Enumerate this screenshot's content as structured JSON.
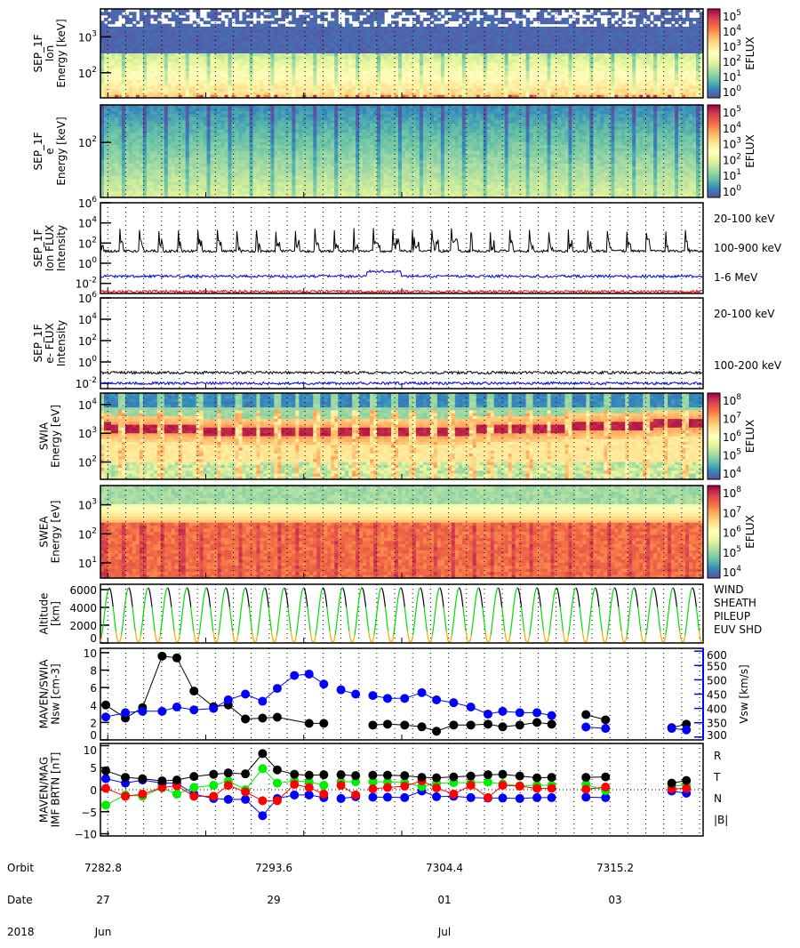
{
  "chart_data": [
    {
      "id": "sep-ion-spec",
      "type": "heatmap",
      "ylabel_lines": [
        "SEP_1F",
        "Ion",
        "Energy [keV]"
      ],
      "yscale": "log",
      "ylim": [
        20,
        6000
      ],
      "yticks": [
        {
          "v": 100,
          "label": "10",
          "exp": "2"
        },
        {
          "v": 1000,
          "label": "10",
          "exp": "3"
        }
      ],
      "colorbar": {
        "label": "EFLUX",
        "ticks": [
          {
            "label": "10",
            "exp": "0"
          },
          {
            "label": "10",
            "exp": "1"
          },
          {
            "label": "10",
            "exp": "2"
          },
          {
            "label": "10",
            "exp": "3"
          },
          {
            "label": "10",
            "exp": "4"
          },
          {
            "label": "10",
            "exp": "5"
          }
        ],
        "range": [
          0,
          5
        ]
      }
    },
    {
      "id": "sep-e-spec",
      "type": "heatmap",
      "ylabel_lines": [
        "SEP_1F",
        "e",
        "Energy [keV]"
      ],
      "yscale": "log",
      "ylim": [
        20,
        300
      ],
      "yticks": [
        {
          "v": 100,
          "label": "10",
          "exp": "2"
        }
      ],
      "colorbar": {
        "label": "EFLUX",
        "ticks": [
          {
            "label": "10",
            "exp": "0"
          },
          {
            "label": "10",
            "exp": "1"
          },
          {
            "label": "10",
            "exp": "2"
          },
          {
            "label": "10",
            "exp": "3"
          },
          {
            "label": "10",
            "exp": "4"
          },
          {
            "label": "10",
            "exp": "5"
          }
        ],
        "range": [
          0,
          5
        ]
      }
    },
    {
      "id": "sep-ion-flux",
      "type": "line",
      "ylabel_lines": [
        "SEP_1F",
        "Ion FLUX",
        "Intensity"
      ],
      "yscale": "log",
      "ylim_exp": [
        -3,
        6
      ],
      "yticks": [
        {
          "label": "10",
          "exp": "6"
        },
        {
          "label": "10",
          "exp": "4"
        },
        {
          "label": "10",
          "exp": "2"
        },
        {
          "label": "10",
          "exp": "0"
        },
        {
          "label": "10",
          "exp": "-2"
        }
      ],
      "yticks_exp": [
        6,
        4,
        2,
        0,
        -2
      ],
      "series": [
        {
          "name": "20-100 keV",
          "color": "#000000",
          "base_log": 1.2,
          "spike_log": 3.0
        },
        {
          "name": "100-900 keV",
          "color": "#0000dd",
          "base_log": -1.3,
          "spike_log": -0.8
        },
        {
          "name": "1-6 MeV",
          "color": "#ee0000",
          "base_log": -2.8,
          "spike_log": -2.5
        }
      ]
    },
    {
      "id": "sep-e-flux",
      "type": "line",
      "ylabel_lines": [
        "SEP_1F",
        "e- FLUX",
        "Intensity"
      ],
      "yscale": "log",
      "ylim_exp": [
        -2.5,
        6
      ],
      "yticks": [
        {
          "label": "10",
          "exp": "6"
        },
        {
          "label": "10",
          "exp": "4"
        },
        {
          "label": "10",
          "exp": "2"
        },
        {
          "label": "10",
          "exp": "0"
        },
        {
          "label": "10",
          "exp": "-2"
        }
      ],
      "yticks_exp": [
        6,
        4,
        2,
        0,
        -2
      ],
      "series": [
        {
          "name": "20-100 keV",
          "color": "#000000",
          "base_log": -1.0
        },
        {
          "name": "100-200 keV",
          "color": "#0000dd",
          "base_log": -2.0
        }
      ]
    },
    {
      "id": "swia-spec",
      "type": "heatmap",
      "ylabel_lines": [
        "SWIA",
        "Energy [eV]"
      ],
      "yscale": "log",
      "ylim": [
        25,
        25000
      ],
      "yticks": [
        {
          "v": 100,
          "label": "10",
          "exp": "2"
        },
        {
          "v": 1000,
          "label": "10",
          "exp": "3"
        },
        {
          "v": 10000,
          "label": "10",
          "exp": "4"
        }
      ],
      "colorbar": {
        "label": "EFLUX",
        "ticks": [
          {
            "label": "10",
            "exp": "4"
          },
          {
            "label": "10",
            "exp": "5"
          },
          {
            "label": "10",
            "exp": "6"
          },
          {
            "label": "10",
            "exp": "7"
          },
          {
            "label": "10",
            "exp": "8"
          }
        ],
        "range": [
          4,
          8
        ]
      }
    },
    {
      "id": "swea-spec",
      "type": "heatmap",
      "ylabel_lines": [
        "SWEA",
        "Energy [eV]"
      ],
      "yscale": "log",
      "ylim": [
        3,
        4600
      ],
      "yticks": [
        {
          "v": 10,
          "label": "10",
          "exp": "1"
        },
        {
          "v": 100,
          "label": "10",
          "exp": "2"
        },
        {
          "v": 1000,
          "label": "10",
          "exp": "3"
        }
      ],
      "colorbar": {
        "label": "EFLUX",
        "ticks": [
          {
            "label": "10",
            "exp": "4"
          },
          {
            "label": "10",
            "exp": "5"
          },
          {
            "label": "10",
            "exp": "6"
          },
          {
            "label": "10",
            "exp": "7"
          },
          {
            "label": "10",
            "exp": "8"
          }
        ],
        "range": [
          3.5,
          8.6
        ]
      }
    },
    {
      "id": "altitude",
      "type": "line",
      "ylabel_lines": [
        "Altitude",
        "[km]"
      ],
      "ylim": [
        0,
        6600
      ],
      "yticks": [
        0,
        2000,
        4000,
        6000
      ],
      "orbits": 31,
      "apoapsis_km": 6200,
      "legend": [
        {
          "name": "WIND",
          "color": "#000000"
        },
        {
          "name": "SHEATH",
          "color": "#00dd00"
        },
        {
          "name": "PILEUP",
          "color": "#ffa500"
        },
        {
          "name": "EUV SHD",
          "color": "#0000cc"
        }
      ]
    },
    {
      "id": "nsw-vsw",
      "type": "scatter",
      "ylabel_lines": [
        "MAVEN/SWIA",
        "Nsw [cm-3]"
      ],
      "ylim": [
        0,
        10.5
      ],
      "yticks": [
        0,
        2,
        4,
        6,
        8,
        10
      ],
      "y2label": "Vsw [km/s]",
      "y2lim": [
        290,
        610
      ],
      "y2ticks": [
        300,
        350,
        400,
        450,
        500,
        550,
        600
      ],
      "series": [
        {
          "name": "Nsw",
          "color": "#000000",
          "axis": "left",
          "points": [
            [
              0.0,
              4.0
            ],
            [
              0.4,
              2.5
            ],
            [
              0.75,
              3.7
            ],
            [
              1.15,
              9.6
            ],
            [
              1.45,
              9.4
            ],
            [
              1.8,
              5.6
            ],
            [
              2.2,
              3.8
            ],
            [
              2.5,
              4.0
            ],
            [
              2.85,
              2.4
            ],
            [
              3.2,
              2.5
            ],
            [
              3.5,
              2.6
            ],
            [
              4.15,
              1.9
            ],
            [
              4.45,
              1.9
            ],
            [
              null,
              null
            ],
            [
              5.45,
              1.7
            ],
            [
              5.75,
              1.8
            ],
            [
              6.1,
              1.7
            ],
            [
              6.45,
              1.5
            ],
            [
              6.75,
              1.0
            ],
            [
              7.1,
              1.7
            ],
            [
              7.45,
              1.7
            ],
            [
              7.8,
              1.8
            ],
            [
              8.1,
              1.5
            ],
            [
              8.45,
              1.7
            ],
            [
              8.8,
              2.0
            ],
            [
              9.1,
              1.8
            ],
            [
              null,
              null
            ],
            [
              9.8,
              2.9
            ],
            [
              10.2,
              2.3
            ],
            [
              null,
              null
            ],
            [
              11.55,
              1.4
            ],
            [
              11.85,
              1.8
            ]
          ]
        },
        {
          "name": "Vsw",
          "color": "#0000ff",
          "axis": "right",
          "points": [
            [
              0.0,
              370
            ],
            [
              0.4,
              385
            ],
            [
              0.75,
              390
            ],
            [
              1.15,
              390
            ],
            [
              1.45,
              405
            ],
            [
              1.8,
              395
            ],
            [
              2.2,
              400
            ],
            [
              2.5,
              430
            ],
            [
              2.85,
              450
            ],
            [
              3.2,
              425
            ],
            [
              3.5,
              470
            ],
            [
              3.85,
              515
            ],
            [
              4.15,
              520
            ],
            [
              4.45,
              485
            ],
            [
              null,
              null
            ],
            [
              4.8,
              465
            ],
            [
              5.1,
              450
            ],
            [
              null,
              null
            ],
            [
              5.45,
              445
            ],
            [
              5.75,
              435
            ],
            [
              6.1,
              435
            ],
            [
              6.45,
              455
            ],
            [
              6.75,
              430
            ],
            [
              7.1,
              420
            ],
            [
              7.45,
              405
            ],
            [
              7.8,
              380
            ],
            [
              8.1,
              390
            ],
            [
              8.45,
              385
            ],
            [
              8.8,
              385
            ],
            [
              9.1,
              375
            ],
            [
              null,
              null
            ],
            [
              9.8,
              335
            ],
            [
              10.2,
              330
            ],
            [
              null,
              null
            ],
            [
              11.55,
              330
            ],
            [
              11.85,
              325
            ]
          ]
        }
      ]
    },
    {
      "id": "imf",
      "type": "scatter",
      "ylabel_lines": [
        "MAVEN/MAG",
        "IMF BRTN [nT]"
      ],
      "ylim": [
        -10.5,
        10.5
      ],
      "yticks": [
        -10,
        -5,
        0,
        5,
        10
      ],
      "legend": [
        {
          "name": "R",
          "color": "#0000ee"
        },
        {
          "name": "T",
          "color": "#00dd00"
        },
        {
          "name": "N",
          "color": "#ee0000"
        },
        {
          "name": "|B|",
          "color": "#000000"
        }
      ],
      "x": [
        0.0,
        0.4,
        0.75,
        1.15,
        1.45,
        1.8,
        2.2,
        2.5,
        2.85,
        3.2,
        3.5,
        3.85,
        4.15,
        4.45,
        null,
        4.8,
        5.1,
        null,
        5.45,
        5.75,
        6.1,
        6.45,
        6.75,
        7.1,
        7.45,
        7.8,
        8.1,
        8.45,
        8.8,
        9.1,
        null,
        9.8,
        10.2,
        null,
        11.55,
        11.85
      ],
      "series": [
        {
          "name": "R",
          "color": "#0000ff",
          "values": [
            2.5,
            1.5,
            2.2,
            1.5,
            1.5,
            -1.0,
            -2.0,
            -2.2,
            -2.2,
            -5.9,
            -2.0,
            -1.2,
            -1.2,
            -1.8,
            null,
            -2.0,
            -1.6,
            null,
            -1.7,
            -1.7,
            -1.8,
            -0.3,
            -1.6,
            -1.5,
            -1.8,
            -1.9,
            -1.9,
            -2.0,
            -1.8,
            -1.8,
            null,
            -1.7,
            -1.8,
            null,
            -0.3,
            -0.8
          ]
        },
        {
          "name": "T",
          "color": "#00ee00",
          "values": [
            -3.5,
            -1.2,
            -1.5,
            0.4,
            -1.0,
            0.5,
            1.0,
            2.0,
            0.0,
            4.8,
            1.5,
            2.0,
            1.8,
            1.0,
            null,
            1.8,
            1.8,
            null,
            1.8,
            1.8,
            1.6,
            0.7,
            1.5,
            1.6,
            1.6,
            1.7,
            1.3,
            0.9,
            1.0,
            1.0,
            null,
            1.2,
            -0.2,
            null,
            0.8,
            1.0
          ]
        },
        {
          "name": "N",
          "color": "#ff0000",
          "values": [
            0.3,
            -1.5,
            -1.0,
            0.5,
            0.9,
            -1.5,
            -1.5,
            1.0,
            -0.5,
            -2.5,
            -2.5,
            1.2,
            0.5,
            -1.0,
            null,
            1.0,
            -1.2,
            null,
            0.2,
            0.5,
            0.8,
            2.0,
            0.4,
            -1.0,
            1.0,
            -1.8,
            1.0,
            0.8,
            0.3,
            0.3,
            null,
            0.1,
            0.6,
            null,
            0.2,
            0.3
          ]
        },
        {
          "name": "|B|",
          "color": "#000000",
          "values": [
            4.3,
            2.8,
            2.5,
            2.0,
            2.2,
            3.0,
            3.5,
            3.8,
            3.6,
            8.2,
            4.5,
            3.5,
            3.3,
            3.4,
            null,
            3.4,
            3.2,
            null,
            3.3,
            3.3,
            3.2,
            2.8,
            2.7,
            2.9,
            3.1,
            3.4,
            3.5,
            3.1,
            2.7,
            2.8,
            null,
            2.8,
            2.9,
            null,
            1.5,
            2.1
          ]
        }
      ]
    }
  ],
  "xaxis": {
    "row_labels": [
      "Orbit",
      "Date",
      "2018"
    ],
    "ticks": [
      {
        "orbit": "7282.8",
        "date": "27",
        "month": "Jun"
      },
      {
        "orbit": "7293.6",
        "date": "29",
        "month": ""
      },
      {
        "orbit": "7304.4",
        "date": "01",
        "month": "Jul"
      },
      {
        "orbit": "7315.2",
        "date": "03",
        "month": ""
      }
    ],
    "days_span": 12.3
  }
}
